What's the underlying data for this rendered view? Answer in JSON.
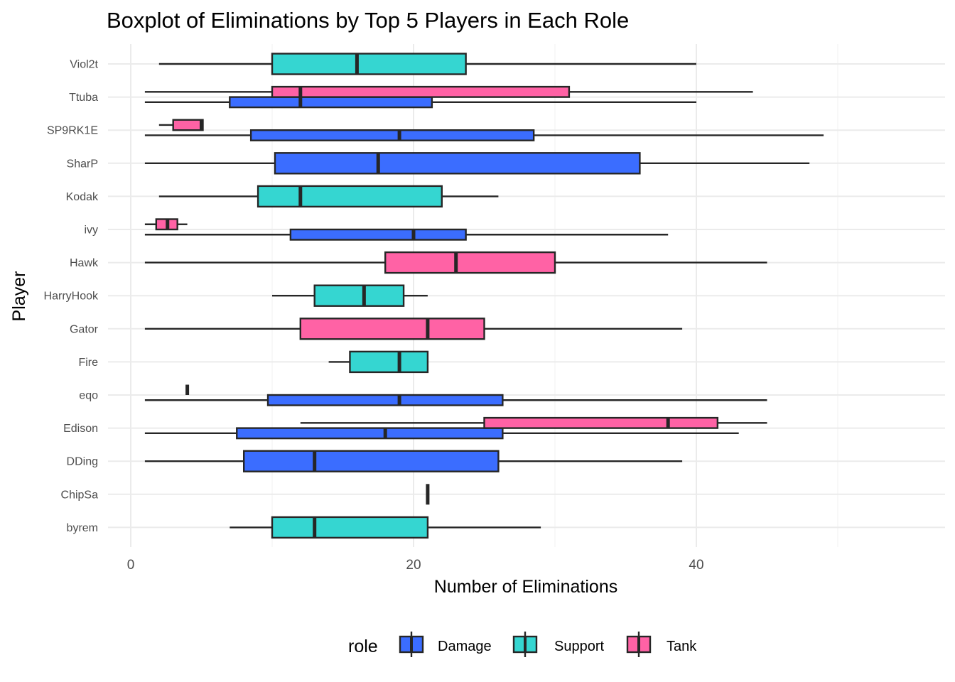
{
  "chart_data": {
    "type": "boxplot",
    "orientation": "horizontal",
    "title": "Boxplot of Eliminations by Top 5 Players in Each Role",
    "xlabel": "Number of Eliminations",
    "ylabel": "Player",
    "xlim": [
      -1.5,
      57.5
    ],
    "x_ticks": [
      0,
      20,
      40
    ],
    "grid": true,
    "legend": {
      "title": "role",
      "position": "bottom",
      "entries": [
        "Damage",
        "Support",
        "Tank"
      ]
    },
    "colors": {
      "Damage": "#3b6dff",
      "Support": "#35d6d1",
      "Tank": "#ff62a5",
      "outline": "#262626",
      "grid": "#ebebeb"
    },
    "players": [
      "Viol2t",
      "Ttuba",
      "SP9RK1E",
      "SharP",
      "Kodak",
      "ivy",
      "Hawk",
      "HarryHook",
      "Gator",
      "Fire",
      "eqo",
      "Edison",
      "DDing",
      "ChipSa",
      "byrem"
    ],
    "boxes": [
      {
        "player": "Viol2t",
        "role": "Support",
        "min": 2,
        "q1": 10,
        "median": 16,
        "q3": 23.7,
        "max": 40
      },
      {
        "player": "Ttuba",
        "role": "Tank",
        "min": 1,
        "q1": 10,
        "median": 12,
        "q3": 31,
        "max": 44
      },
      {
        "player": "Ttuba",
        "role": "Damage",
        "min": 1,
        "q1": 7,
        "median": 12,
        "q3": 21.3,
        "max": 40
      },
      {
        "player": "SP9RK1E",
        "role": "Tank",
        "min": 2,
        "q1": 3,
        "median": 5,
        "q3": 5.1,
        "max": 5.1
      },
      {
        "player": "SP9RK1E",
        "role": "Damage",
        "min": 1,
        "q1": 8.5,
        "median": 19,
        "q3": 28.5,
        "max": 49
      },
      {
        "player": "SharP",
        "role": "Damage",
        "min": 1,
        "q1": 10.2,
        "median": 17.5,
        "q3": 36,
        "max": 48
      },
      {
        "player": "Kodak",
        "role": "Support",
        "min": 2,
        "q1": 9,
        "median": 12,
        "q3": 22,
        "max": 26
      },
      {
        "player": "ivy",
        "role": "Tank",
        "min": 1,
        "q1": 1.8,
        "median": 2.6,
        "q3": 3.3,
        "max": 4
      },
      {
        "player": "ivy",
        "role": "Damage",
        "min": 1,
        "q1": 11.3,
        "median": 20,
        "q3": 23.7,
        "max": 38
      },
      {
        "player": "Hawk",
        "role": "Tank",
        "min": 1,
        "q1": 18,
        "median": 23,
        "q3": 30,
        "max": 45
      },
      {
        "player": "HarryHook",
        "role": "Support",
        "min": 10,
        "q1": 13,
        "median": 16.5,
        "q3": 19.3,
        "max": 21
      },
      {
        "player": "Gator",
        "role": "Tank",
        "min": 1,
        "q1": 12,
        "median": 21,
        "q3": 25,
        "max": 39
      },
      {
        "player": "Fire",
        "role": "Support",
        "min": 14,
        "q1": 15.5,
        "median": 19,
        "q3": 21,
        "max": 21
      },
      {
        "player": "eqo",
        "role": "Tank",
        "min": 4,
        "q1": 4,
        "median": 4,
        "q3": 4,
        "max": 4
      },
      {
        "player": "eqo",
        "role": "Damage",
        "min": 1,
        "q1": 9.7,
        "median": 19,
        "q3": 26.3,
        "max": 45
      },
      {
        "player": "Edison",
        "role": "Tank",
        "min": 12,
        "q1": 25,
        "median": 38,
        "q3": 41.5,
        "max": 45
      },
      {
        "player": "Edison",
        "role": "Damage",
        "min": 1,
        "q1": 7.5,
        "median": 18,
        "q3": 26.3,
        "max": 43
      },
      {
        "player": "DDing",
        "role": "Damage",
        "min": 1,
        "q1": 8,
        "median": 13,
        "q3": 26,
        "max": 39
      },
      {
        "player": "ChipSa",
        "role": "Support",
        "min": 21,
        "q1": 21,
        "median": 21,
        "q3": 21,
        "max": 21
      },
      {
        "player": "byrem",
        "role": "Support",
        "min": 7,
        "q1": 10,
        "median": 13,
        "q3": 21,
        "max": 29
      }
    ]
  }
}
